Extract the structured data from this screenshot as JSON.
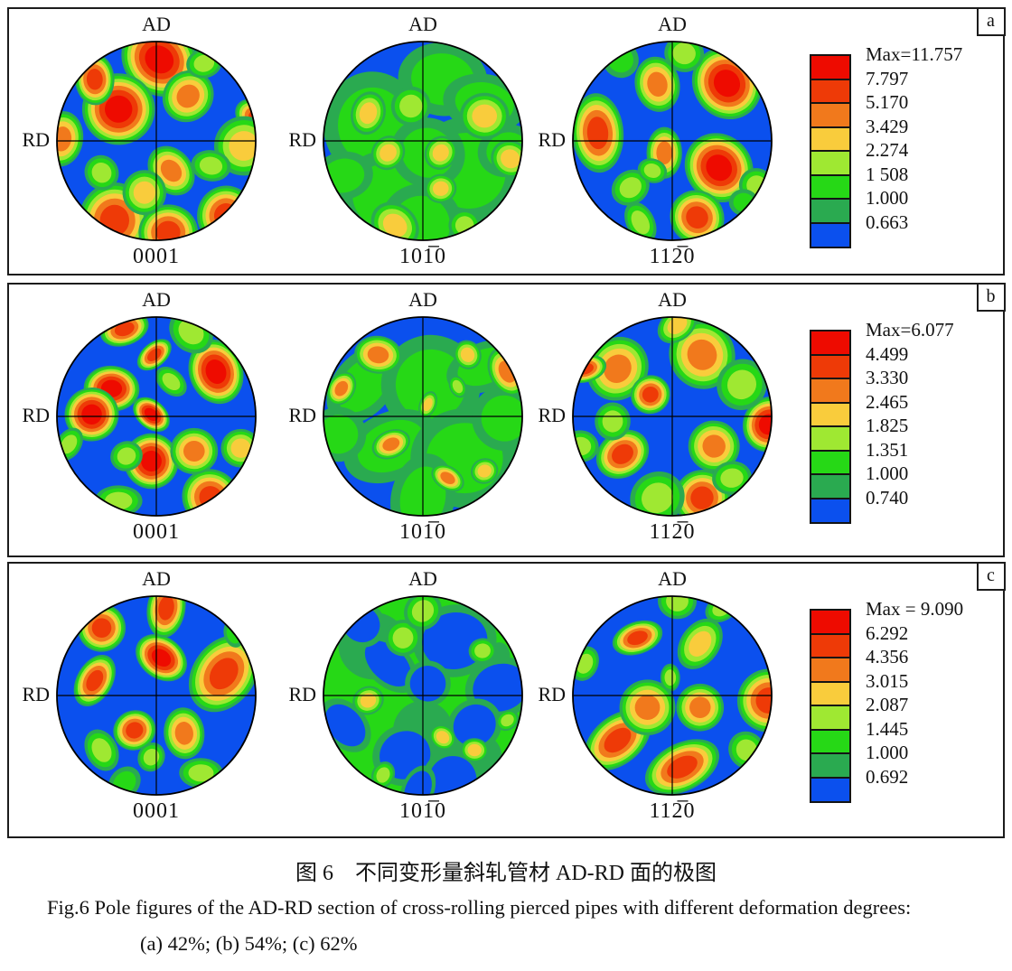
{
  "colors": {
    "blue_base": "#0b50ee",
    "green_base": "#26d816",
    "levels_low_to_high": [
      "#2aaa50",
      "#26d816",
      "#9fe832",
      "#f9cc3c",
      "#f1791c",
      "#ee3a07",
      "#ee0b00"
    ],
    "scale_top_to_bottom": [
      "#ee0b00",
      "#ee3a07",
      "#f1791c",
      "#f9cc3c",
      "#9fe832",
      "#26d816",
      "#2aaa50",
      "#0b50ee"
    ]
  },
  "axis": {
    "top": "AD",
    "left": "RD"
  },
  "panels": [
    {
      "letter": "a",
      "legend": {
        "max": "Max=11.757",
        "values": [
          "7.797",
          "5.170",
          "3.429",
          "2.274",
          "1 508",
          "1.000",
          "0.663"
        ]
      },
      "figures": [
        {
          "sublabel": "0001",
          "base": "blue",
          "blobs": [
            [
              0.03,
              -0.82,
              0.4,
              7
            ],
            [
              -0.38,
              -0.32,
              0.36,
              7
            ],
            [
              -0.62,
              -0.62,
              0.26,
              6
            ],
            [
              -0.95,
              -0.02,
              0.28,
              5
            ],
            [
              1.02,
              -0.22,
              0.25,
              6
            ],
            [
              0.88,
              0.05,
              0.3,
              4
            ],
            [
              -0.42,
              0.8,
              0.36,
              6
            ],
            [
              0.12,
              0.92,
              0.28,
              6
            ],
            [
              0.7,
              0.75,
              0.3,
              6
            ],
            [
              0.32,
              -0.45,
              0.27,
              5
            ],
            [
              0.15,
              0.3,
              0.27,
              5
            ],
            [
              -0.55,
              0.32,
              0.18,
              3
            ],
            [
              0.48,
              -0.78,
              0.18,
              3
            ],
            [
              -0.12,
              0.52,
              0.22,
              4
            ],
            [
              0.55,
              0.25,
              0.2,
              3
            ]
          ]
        },
        {
          "sublabel": "101̅0",
          "base": "blue",
          "blobs": [
            [
              -0.5,
              -0.15,
              0.5,
              2
            ],
            [
              0.45,
              0.3,
              0.55,
              2
            ],
            [
              0.2,
              -0.62,
              0.45,
              2
            ],
            [
              -0.38,
              0.55,
              0.45,
              2
            ],
            [
              0.62,
              -0.38,
              0.42,
              2
            ],
            [
              0.05,
              0.12,
              0.35,
              2
            ],
            [
              -0.02,
              0.85,
              0.42,
              2
            ],
            [
              0.85,
              0.1,
              0.3,
              2
            ],
            [
              -0.8,
              0.35,
              0.3,
              2
            ],
            [
              -0.55,
              -0.28,
              0.22,
              4
            ],
            [
              0.62,
              -0.25,
              0.25,
              4
            ],
            [
              0.88,
              0.18,
              0.2,
              4
            ],
            [
              -0.35,
              0.12,
              0.18,
              4
            ],
            [
              0.18,
              0.12,
              0.16,
              4
            ],
            [
              0.18,
              0.48,
              0.16,
              4
            ],
            [
              -0.28,
              0.85,
              0.26,
              4
            ],
            [
              0.42,
              0.85,
              0.16,
              3
            ],
            [
              -0.12,
              -0.35,
              0.2,
              3
            ]
          ]
        },
        {
          "sublabel": "112̅0",
          "base": "blue",
          "blobs": [
            [
              0.55,
              -0.58,
              0.34,
              7
            ],
            [
              -0.75,
              -0.08,
              0.4,
              6
            ],
            [
              0.47,
              0.27,
              0.33,
              7
            ],
            [
              -0.15,
              -0.57,
              0.28,
              5
            ],
            [
              -0.08,
              0.12,
              0.26,
              5
            ],
            [
              0.25,
              0.77,
              0.28,
              6
            ],
            [
              -0.42,
              0.47,
              0.2,
              3
            ],
            [
              -0.32,
              0.82,
              0.22,
              3
            ],
            [
              0.85,
              0.45,
              0.18,
              3
            ],
            [
              -0.52,
              -0.82,
              0.18,
              2
            ],
            [
              0.12,
              -0.88,
              0.2,
              3
            ],
            [
              0.72,
              0.62,
              0.15,
              2
            ],
            [
              -0.2,
              0.3,
              0.15,
              3
            ]
          ]
        }
      ]
    },
    {
      "letter": "b",
      "legend": {
        "max": "Max=6.077",
        "values": [
          "4.499",
          "3.330",
          "2.465",
          "1.825",
          "1.351",
          "1.000",
          "0.740"
        ]
      },
      "figures": [
        {
          "sublabel": "0001",
          "base": "blue",
          "blobs": [
            [
              -0.45,
              -0.28,
              0.28,
              7
            ],
            [
              -0.65,
              -0.02,
              0.27,
              7
            ],
            [
              -0.05,
              -0.02,
              0.21,
              7
            ],
            [
              0.6,
              -0.45,
              0.33,
              7
            ],
            [
              -0.05,
              0.45,
              0.28,
              7
            ],
            [
              -0.32,
              -0.88,
              0.25,
              6
            ],
            [
              -0.02,
              -0.62,
              0.2,
              6
            ],
            [
              0.55,
              0.82,
              0.3,
              6
            ],
            [
              -0.38,
              0.85,
              0.24,
              3
            ],
            [
              0.35,
              -0.85,
              0.24,
              3
            ],
            [
              0.85,
              0.32,
              0.2,
              4
            ],
            [
              0.38,
              0.35,
              0.24,
              5
            ],
            [
              -0.88,
              0.28,
              0.18,
              3
            ],
            [
              0.15,
              -0.35,
              0.18,
              3
            ],
            [
              -0.3,
              0.4,
              0.15,
              3
            ]
          ]
        },
        {
          "sublabel": "101̅0",
          "base": "blue",
          "blobs": [
            [
              -0.6,
              -0.32,
              0.45,
              2
            ],
            [
              0.08,
              -0.32,
              0.5,
              2
            ],
            [
              0.62,
              -0.5,
              0.4,
              2
            ],
            [
              -0.32,
              0.3,
              0.5,
              2
            ],
            [
              0.42,
              0.42,
              0.5,
              2
            ],
            [
              0.0,
              0.82,
              0.45,
              2
            ],
            [
              0.82,
              0.02,
              0.33,
              2
            ],
            [
              -0.85,
              0.18,
              0.28,
              2
            ],
            [
              -0.45,
              -0.62,
              0.24,
              5
            ],
            [
              -0.82,
              -0.28,
              0.18,
              5
            ],
            [
              0.85,
              -0.45,
              0.26,
              5
            ],
            [
              0.45,
              -0.62,
              0.15,
              4
            ],
            [
              -0.32,
              0.28,
              0.2,
              5
            ],
            [
              0.25,
              0.62,
              0.18,
              5
            ],
            [
              0.62,
              0.55,
              0.14,
              4
            ],
            [
              0.05,
              -0.12,
              0.14,
              4
            ],
            [
              0.35,
              -0.3,
              0.12,
              3
            ]
          ]
        },
        {
          "sublabel": "112̅0",
          "base": "blue",
          "blobs": [
            [
              0.97,
              0.08,
              0.28,
              7
            ],
            [
              -0.5,
              0.38,
              0.28,
              6
            ],
            [
              0.3,
              0.82,
              0.28,
              6
            ],
            [
              -0.55,
              -0.48,
              0.33,
              5
            ],
            [
              -0.22,
              -0.22,
              0.2,
              6
            ],
            [
              0.3,
              -0.62,
              0.33,
              5
            ],
            [
              -0.88,
              -0.48,
              0.22,
              6
            ],
            [
              0.42,
              0.3,
              0.26,
              5
            ],
            [
              -0.15,
              0.82,
              0.26,
              3
            ],
            [
              0.7,
              -0.32,
              0.26,
              3
            ],
            [
              -0.92,
              0.3,
              0.18,
              3
            ],
            [
              0.05,
              -0.92,
              0.22,
              4
            ],
            [
              0.6,
              0.62,
              0.2,
              3
            ],
            [
              -0.6,
              0.05,
              0.18,
              3
            ]
          ]
        }
      ]
    },
    {
      "letter": "c",
      "legend": {
        "max": "Max = 9.090",
        "values": [
          "6.292",
          "4.356",
          "3.015",
          "2.087",
          "1.445",
          "1.000",
          "0.692"
        ]
      },
      "figures": [
        {
          "sublabel": "0001",
          "base": "blue",
          "blobs": [
            [
              0.05,
              -0.38,
              0.28,
              7
            ],
            [
              0.1,
              -0.88,
              0.3,
              6
            ],
            [
              -0.55,
              -0.68,
              0.24,
              6
            ],
            [
              -0.62,
              -0.15,
              0.28,
              6
            ],
            [
              0.68,
              -0.22,
              0.42,
              6
            ],
            [
              -0.22,
              0.35,
              0.2,
              6
            ],
            [
              0.28,
              0.38,
              0.26,
              5
            ],
            [
              -0.55,
              0.55,
              0.22,
              3
            ],
            [
              0.45,
              0.78,
              0.22,
              3
            ],
            [
              -0.32,
              0.88,
              0.18,
              2
            ],
            [
              0.78,
              -0.62,
              0.14,
              2
            ],
            [
              -0.05,
              0.62,
              0.15,
              3
            ]
          ]
        },
        {
          "sublabel": "101̅0",
          "base": "green",
          "blobs": [
            [
              -0.5,
              -0.5,
              0.35,
              1
            ],
            [
              0.5,
              0.6,
              0.3,
              1
            ],
            [
              0.0,
              0.35,
              0.3,
              1
            ],
            [
              0.7,
              -0.3,
              0.25,
              1
            ],
            [
              -0.35,
              -0.32,
              0.28,
              0
            ],
            [
              0.32,
              -0.55,
              0.33,
              0
            ],
            [
              0.78,
              -0.08,
              0.28,
              0
            ],
            [
              -0.78,
              0.3,
              0.24,
              0
            ],
            [
              0.52,
              0.3,
              0.22,
              0
            ],
            [
              -0.18,
              0.6,
              0.24,
              0
            ],
            [
              0.3,
              0.85,
              0.24,
              0
            ],
            [
              -0.62,
              -0.72,
              0.18,
              0
            ],
            [
              0.05,
              -0.12,
              0.18,
              0
            ],
            [
              -0.05,
              0.95,
              0.2,
              0
            ],
            [
              -0.55,
              0.05,
              0.16,
              4
            ],
            [
              0.52,
              0.55,
              0.14,
              4
            ],
            [
              0.2,
              0.42,
              0.14,
              4
            ],
            [
              -0.2,
              -0.58,
              0.18,
              3
            ],
            [
              0.6,
              -0.45,
              0.14,
              3
            ],
            [
              -0.4,
              0.8,
              0.14,
              3
            ],
            [
              0.0,
              -0.85,
              0.2,
              3
            ],
            [
              0.85,
              0.25,
              0.12,
              3
            ]
          ]
        },
        {
          "sublabel": "112̅0",
          "base": "blue",
          "blobs": [
            [
              -0.35,
              -0.58,
              0.26,
              6
            ],
            [
              0.28,
              -0.52,
              0.28,
              4
            ],
            [
              -0.55,
              0.45,
              0.38,
              6
            ],
            [
              0.1,
              0.72,
              0.4,
              6
            ],
            [
              0.97,
              0.05,
              0.32,
              6
            ],
            [
              -0.25,
              0.12,
              0.28,
              5
            ],
            [
              0.28,
              0.12,
              0.24,
              5
            ],
            [
              0.5,
              -0.88,
              0.18,
              3
            ],
            [
              -0.88,
              -0.32,
              0.18,
              3
            ],
            [
              0.75,
              0.55,
              0.18,
              3
            ],
            [
              -0.02,
              -0.18,
              0.14,
              3
            ],
            [
              0.05,
              -0.95,
              0.18,
              3
            ]
          ]
        }
      ]
    }
  ],
  "caption": {
    "zh": "图 6　不同变形量斜轧管材 AD-RD 面的极图",
    "en": "Fig.6   Pole figures of the AD-RD section of cross-rolling pierced pipes with different deformation degrees:",
    "items": "(a) 42%; (b) 54%; (c) 62%"
  }
}
